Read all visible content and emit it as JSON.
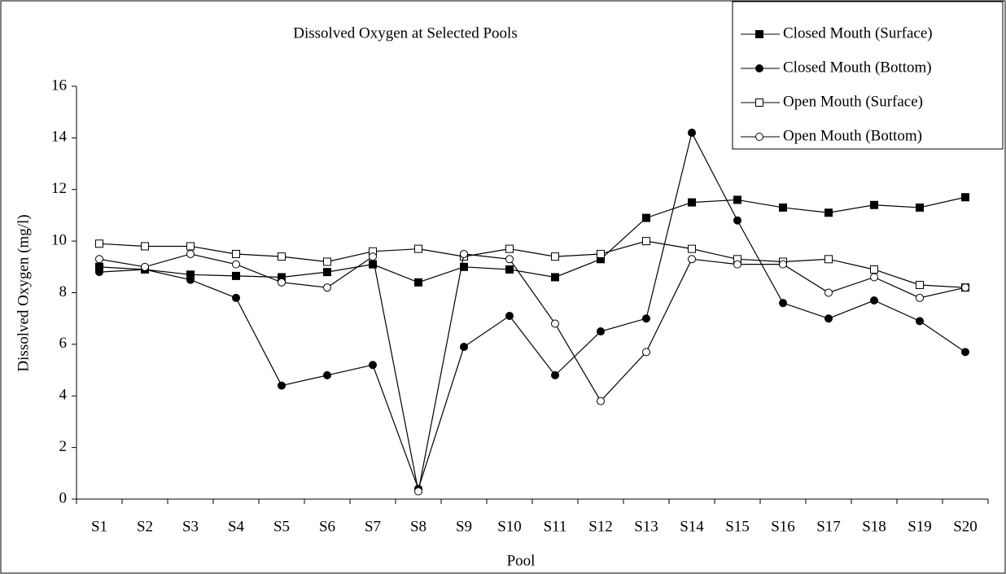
{
  "chart_data": {
    "type": "line",
    "title": "Dissolved Oxygen at Selected Pools",
    "x_label": "Pool",
    "y_label": "Dissolved Oxygen (mg/l)",
    "categories": [
      "S1",
      "S2",
      "S3",
      "S4",
      "S5",
      "S6",
      "S7",
      "S8",
      "S9",
      "S10",
      "S11",
      "S12",
      "S13",
      "S14",
      "S15",
      "S16",
      "S17",
      "S18",
      "S19",
      "S20"
    ],
    "ylim": [
      0,
      16
    ],
    "yticks": [
      0,
      2,
      4,
      6,
      8,
      10,
      12,
      14,
      16
    ],
    "grid": false,
    "legend": "upper right",
    "series": [
      {
        "name": "Closed Mouth (Surface)",
        "color": "#000000",
        "marker": "square",
        "marker_fill": "#000000",
        "values": [
          9.0,
          8.9,
          8.7,
          8.65,
          8.6,
          8.8,
          9.1,
          8.4,
          9.0,
          8.9,
          8.6,
          9.3,
          10.9,
          11.5,
          11.6,
          11.3,
          11.1,
          11.4,
          11.3,
          11.7
        ]
      },
      {
        "name": "Closed Mouth (Bottom)",
        "color": "#000000",
        "marker": "circle",
        "marker_fill": "#000000",
        "values": [
          8.8,
          8.9,
          8.5,
          7.8,
          4.4,
          4.8,
          5.2,
          0.4,
          5.9,
          7.1,
          4.8,
          6.5,
          7.0,
          14.2,
          10.8,
          7.6,
          7.0,
          7.7,
          6.9,
          5.7
        ]
      },
      {
        "name": "Open Mouth (Surface)",
        "color": "#000000",
        "marker": "square",
        "marker_fill": "#ffffff",
        "values": [
          9.9,
          9.8,
          9.8,
          9.5,
          9.4,
          9.2,
          9.6,
          9.7,
          9.4,
          9.7,
          9.4,
          9.5,
          10.0,
          9.7,
          9.3,
          9.2,
          9.3,
          8.9,
          8.3,
          8.2
        ]
      },
      {
        "name": "Open Mouth (Bottom)",
        "color": "#000000",
        "marker": "circle",
        "marker_fill": "#ffffff",
        "values": [
          9.3,
          9.0,
          9.5,
          9.1,
          8.4,
          8.2,
          9.4,
          0.3,
          9.5,
          9.3,
          6.8,
          3.8,
          5.7,
          9.3,
          9.1,
          9.1,
          8.0,
          8.6,
          7.8,
          8.2
        ]
      }
    ]
  }
}
